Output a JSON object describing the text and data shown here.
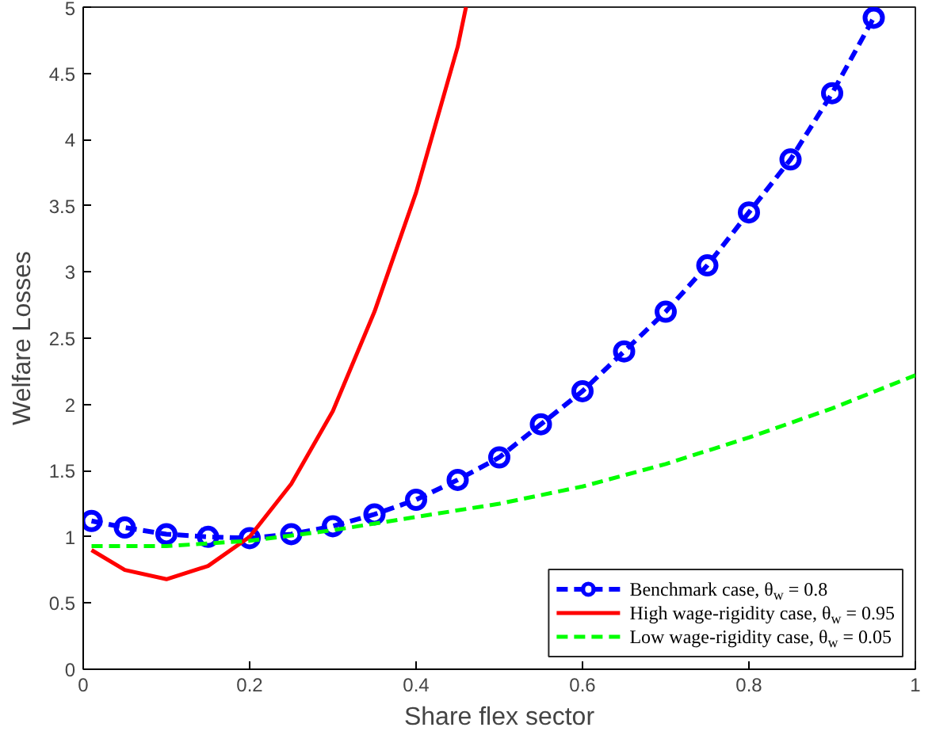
{
  "chart_data": {
    "type": "line",
    "xlabel": "Share flex sector",
    "ylabel": "Welfare Losses",
    "xlim": [
      0,
      1
    ],
    "ylim": [
      0,
      5
    ],
    "xticks": [
      0,
      0.2,
      0.4,
      0.6,
      0.8,
      1
    ],
    "yticks": [
      0,
      0.5,
      1,
      1.5,
      2,
      2.5,
      3,
      3.5,
      4,
      4.5,
      5
    ],
    "grid": false,
    "legend": "bottom right",
    "series": [
      {
        "name": "Benchmark case, θ$_{w}$ = 0.8",
        "color": "#0000ff",
        "marker": "circle",
        "line_style": "dashed",
        "x": [
          0.01,
          0.05,
          0.1,
          0.15,
          0.2,
          0.25,
          0.3,
          0.35,
          0.4,
          0.45,
          0.5,
          0.55,
          0.6,
          0.65,
          0.7,
          0.75,
          0.8,
          0.85,
          0.9,
          0.95
        ],
        "values": [
          1.12,
          1.07,
          1.02,
          1.0,
          0.99,
          1.02,
          1.08,
          1.17,
          1.28,
          1.43,
          1.6,
          1.85,
          2.1,
          2.4,
          2.7,
          3.05,
          3.45,
          3.85,
          4.35,
          4.92
        ]
      },
      {
        "name": "High wage-rigidity case, θ$_{w}$ = 0.95",
        "color": "#ff0000",
        "marker": "none",
        "line_style": "solid",
        "x": [
          0.01,
          0.05,
          0.1,
          0.15,
          0.2,
          0.25,
          0.3,
          0.35,
          0.4,
          0.45,
          0.46
        ],
        "values": [
          0.9,
          0.75,
          0.68,
          0.78,
          1.0,
          1.4,
          1.95,
          2.7,
          3.6,
          4.7,
          5.0
        ]
      },
      {
        "name": "Low wage-rigidity case, θ$_{w}$ = 0.05",
        "color": "#00ff00",
        "marker": "none",
        "line_style": "dashed",
        "x": [
          0.01,
          0.1,
          0.2,
          0.3,
          0.4,
          0.5,
          0.6,
          0.7,
          0.8,
          0.9,
          1.0
        ],
        "values": [
          0.93,
          0.93,
          0.97,
          1.05,
          1.15,
          1.25,
          1.38,
          1.55,
          1.75,
          1.97,
          2.22
        ]
      }
    ]
  }
}
